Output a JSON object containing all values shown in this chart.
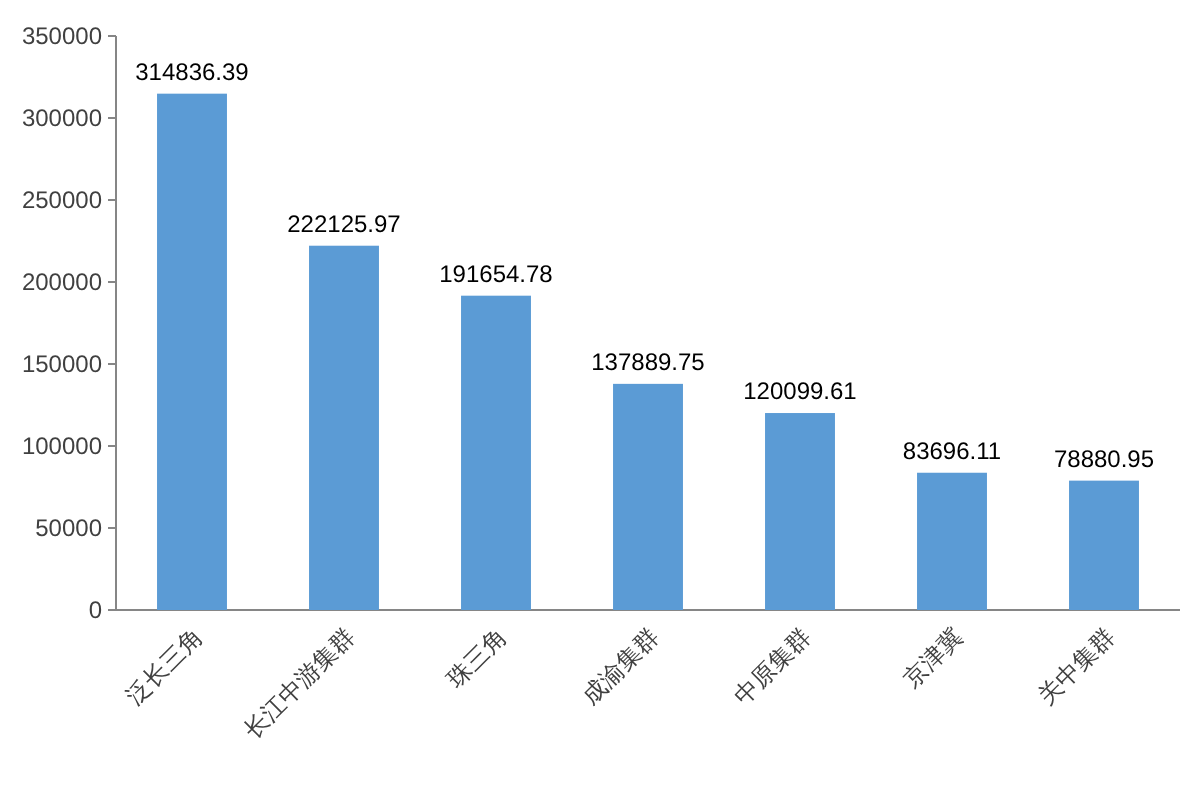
{
  "chart_data": {
    "type": "bar",
    "categories": [
      "泛长三角",
      "长江中游集群",
      "珠三角",
      "成渝集群",
      "中原集群",
      "京津冀",
      "关中集群"
    ],
    "values": [
      314836.39,
      222125.97,
      191654.78,
      137889.75,
      120099.61,
      83696.11,
      78880.95
    ],
    "color": "#5b9bd5",
    "ylim": [
      0,
      350000
    ],
    "yticks": [
      0,
      50000,
      100000,
      150000,
      200000,
      250000,
      300000,
      350000
    ],
    "data_labels": true
  }
}
